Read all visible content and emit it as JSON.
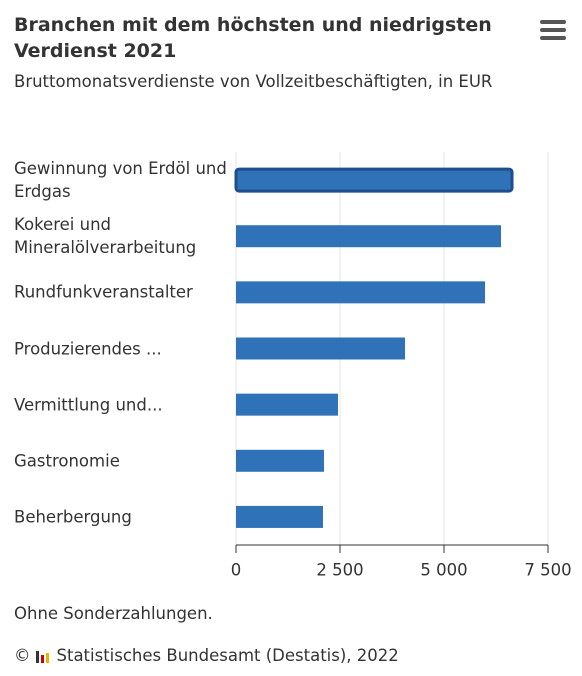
{
  "chart_data": {
    "type": "bar",
    "orientation": "horizontal",
    "title": "Branchen mit dem höchsten und niedrigsten Verdienst 2021",
    "subtitle": "Bruttomonatsverdienste von Vollzeitbeschäftigten, in EUR",
    "categories": [
      "Gewinnung von Erdöl und Erdgas",
      "Kokerei und Mineralölverarbeitung",
      "Rundfunkveranstalter",
      "Produzierendes ...",
      "Vermittlung und...",
      "Gastronomie",
      "Beherbergung"
    ],
    "values": [
      6635,
      6370,
      5986,
      4063,
      2452,
      2115,
      2091
    ],
    "color": "#2f72b8",
    "xlim": [
      0,
      7500
    ],
    "xticks": [
      0,
      {
        "value": 2500,
        "label": "2 500"
      },
      {
        "value": 5000,
        "label": "5 000"
      },
      {
        "value": 7500,
        "label": "7 500"
      }
    ],
    "grid": true,
    "note": "Ohne Sonderzahlungen.",
    "copyright": "©",
    "credit": "Statistisches Bundesamt (Destatis), 2022"
  }
}
